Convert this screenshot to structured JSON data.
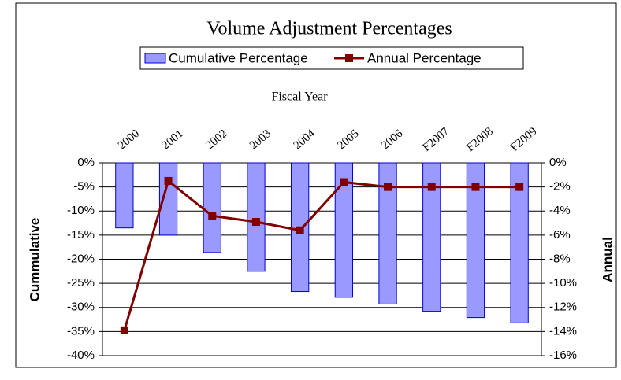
{
  "chart_data": {
    "type": "bar",
    "title": "Volume Adjustment Percentages",
    "x_label": "Fiscal Year",
    "y_label": "Cummulative",
    "y2_label": "Annual",
    "categories": [
      "2000",
      "2001",
      "2002",
      "2003",
      "2004",
      "2005",
      "2006",
      "F2007",
      "F2008",
      "F2009"
    ],
    "series": [
      {
        "name": "Cumulative Percentage",
        "type": "bar",
        "color": "#9999ff",
        "values": [
          -13.5,
          -15,
          -18.6,
          -22.5,
          -26.7,
          -27.9,
          -29.3,
          -30.8,
          -32.1,
          -33.2
        ]
      },
      {
        "name": "Annual Percentage",
        "type": "line",
        "axis": "y2",
        "color": "#800000",
        "values": [
          -13.9,
          -1.5,
          -4.4,
          -4.9,
          -5.6,
          -1.6,
          -2,
          -2,
          -2,
          -2
        ]
      }
    ],
    "ylim": [
      -40,
      0
    ],
    "yticks": [
      {
        "value": 0,
        "label": "0%"
      },
      {
        "value": -5,
        "label": "-5%"
      },
      {
        "value": -10,
        "label": "-10%"
      },
      {
        "value": -15,
        "label": "-15%"
      },
      {
        "value": -20,
        "label": "-20%"
      },
      {
        "value": -25,
        "label": "-25%"
      },
      {
        "value": -30,
        "label": "-30%"
      },
      {
        "value": -35,
        "label": "-35%"
      },
      {
        "value": -40,
        "label": "-40%"
      }
    ],
    "y2lim": [
      -16,
      0
    ],
    "y2ticks": [
      {
        "value": 0,
        "label": "0%"
      },
      {
        "value": -2,
        "label": "-2%"
      },
      {
        "value": -4,
        "label": "-4%"
      },
      {
        "value": -6,
        "label": "-6%"
      },
      {
        "value": -8,
        "label": "-8%"
      },
      {
        "value": -10,
        "label": "-10%"
      },
      {
        "value": -12,
        "label": "-12%"
      },
      {
        "value": -14,
        "label": "-14%"
      },
      {
        "value": -16,
        "label": "-16%"
      }
    ],
    "grid": true
  }
}
